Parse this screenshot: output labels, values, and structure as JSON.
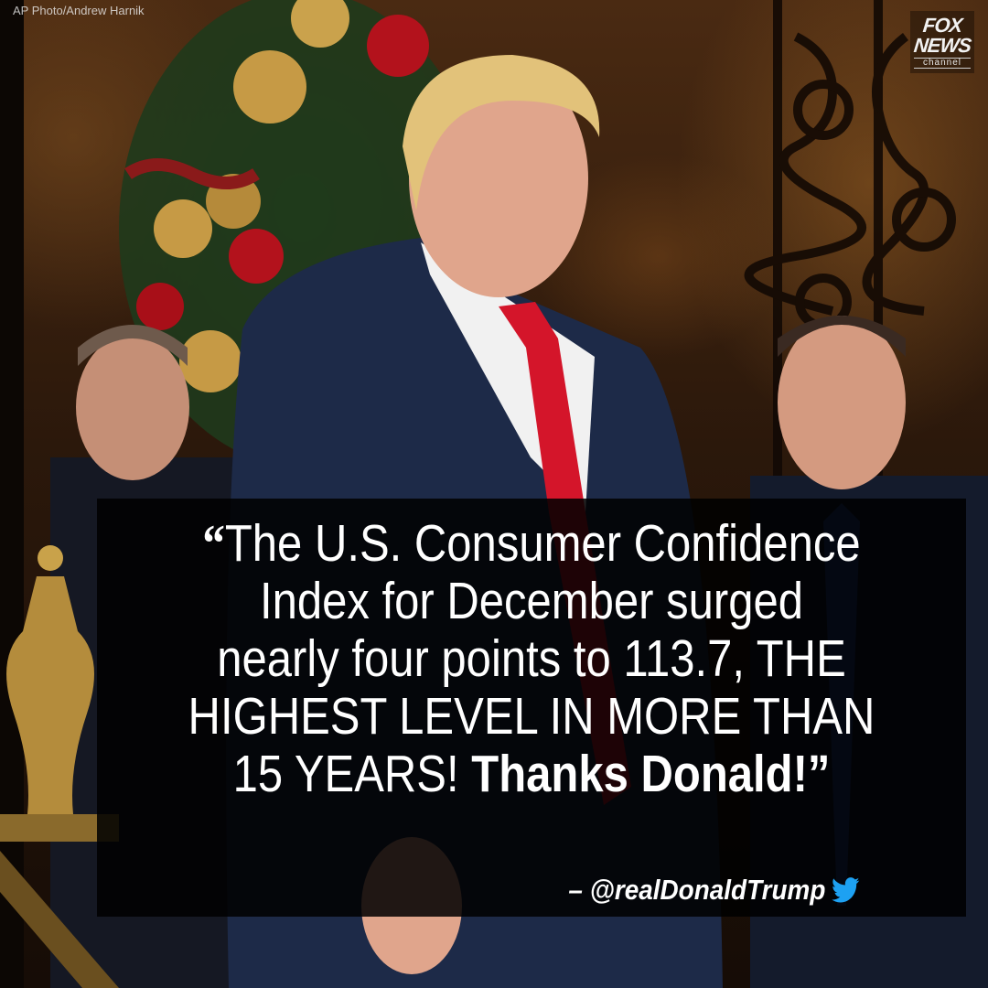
{
  "photo_credit": "AP Photo/Andrew Harnik",
  "logo": {
    "line1": "FOX",
    "line2": "NEWS",
    "line3": "channel"
  },
  "quote": {
    "open_mark": "“",
    "line1": "The U.S. Consumer Confidence",
    "line2": "Index for December surged",
    "line3": "nearly four points to 113.7, THE",
    "line4": "HIGHEST LEVEL IN MORE THAN",
    "line5_regular": "15 YEARS! ",
    "line5_bold": "Thanks Donald!",
    "close_mark": "”"
  },
  "attribution": {
    "handle": "– @realDonaldTrump",
    "icon": "twitter-bird-icon",
    "icon_color": "#1da1f2"
  },
  "colors": {
    "overlay": "#000000",
    "tie": "#d4152a",
    "suit": "#1d2a48"
  }
}
